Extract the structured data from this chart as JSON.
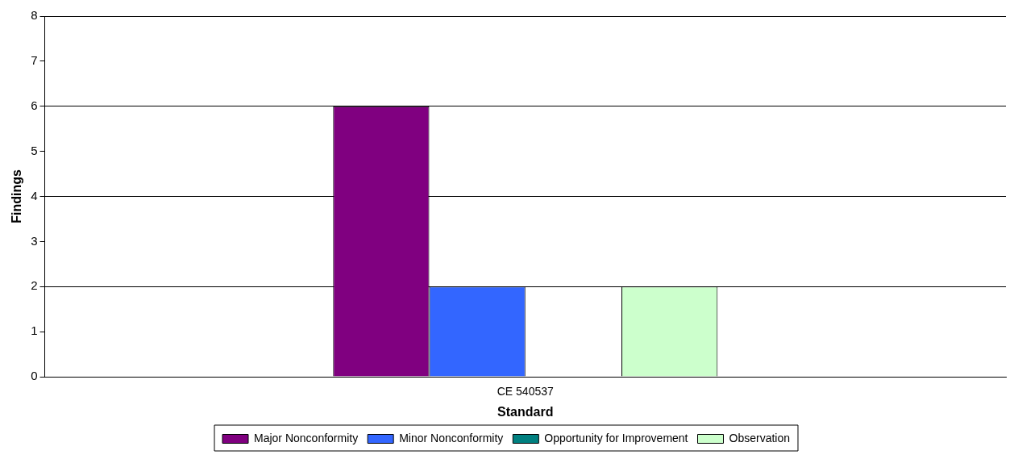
{
  "chart_data": {
    "type": "bar",
    "xlabel": "Standard",
    "ylabel": "Findings",
    "categories": [
      "CE 540537"
    ],
    "series": [
      {
        "name": "Major Nonconformity",
        "color": "#800080",
        "values": [
          6
        ]
      },
      {
        "name": "Minor Nonconformity",
        "color": "#3366ff",
        "values": [
          2
        ]
      },
      {
        "name": "Opportunity for Improvement",
        "color": "#008080",
        "values": [
          0
        ]
      },
      {
        "name": "Observation",
        "color": "#ccffcc",
        "values": [
          2
        ]
      }
    ],
    "ylim": [
      0,
      8
    ],
    "yticks": [
      0,
      1,
      2,
      3,
      4,
      5,
      6,
      7,
      8
    ],
    "grid": "y",
    "legend": "bottom"
  }
}
